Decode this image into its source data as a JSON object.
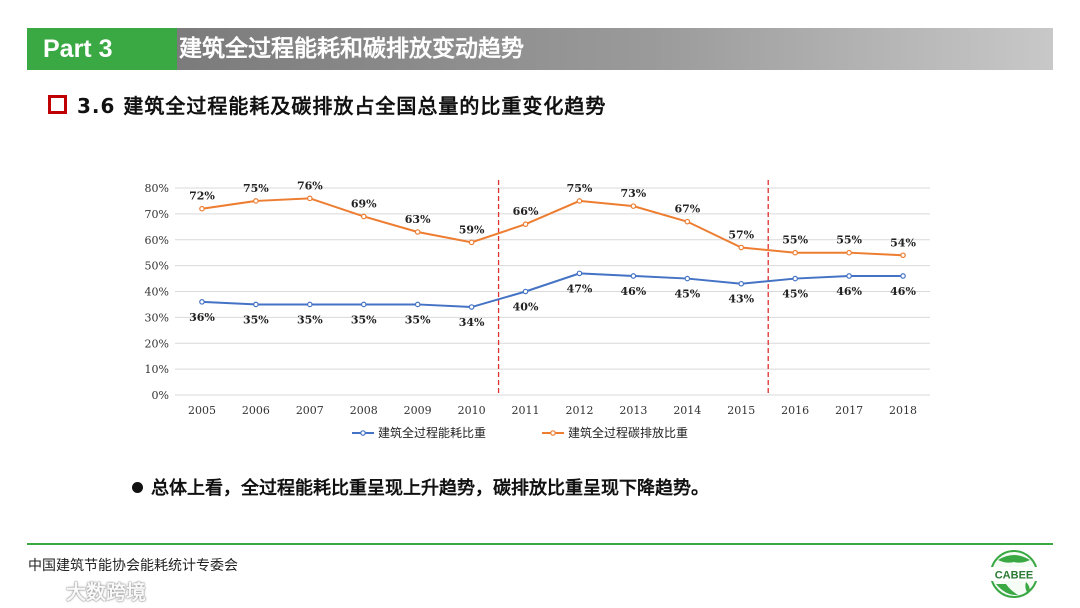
{
  "header": {
    "part_label": "Part 3",
    "title": "建筑全过程能耗和碳排放变动趋势"
  },
  "subtitle": {
    "text": "3.6 建筑全过程能耗及碳排放占全国总量的比重变化趋势"
  },
  "chart_data": {
    "type": "line",
    "title": "",
    "categories": [
      "2005",
      "2006",
      "2007",
      "2008",
      "2009",
      "2010",
      "2011",
      "2012",
      "2013",
      "2014",
      "2015",
      "2016",
      "2017",
      "2018"
    ],
    "series": [
      {
        "name": "建筑全过程能耗比重",
        "color": "#4472c4",
        "values": [
          36,
          35,
          35,
          35,
          35,
          34,
          40,
          47,
          46,
          45,
          43,
          45,
          46,
          46
        ],
        "labels": [
          "36%",
          "35%",
          "35%",
          "35%",
          "35%",
          "34%",
          "40%",
          "47%",
          "46%",
          "45%",
          "43%",
          "45%",
          "46%",
          "46%"
        ]
      },
      {
        "name": "建筑全过程碳排放比重",
        "color": "#ed7d31",
        "values": [
          72,
          75,
          76,
          69,
          63,
          59,
          66,
          75,
          73,
          67,
          57,
          55,
          55,
          54
        ],
        "labels": [
          "72%",
          "75%",
          "76%",
          "69%",
          "63%",
          "59%",
          "66%",
          "75%",
          "73%",
          "67%",
          "57%",
          "55%",
          "55%",
          "54%"
        ]
      }
    ],
    "y_ticks": [
      "0%",
      "10%",
      "20%",
      "30%",
      "40%",
      "50%",
      "60%",
      "70%",
      "80%"
    ],
    "ylim": [
      0,
      80
    ],
    "grid": true,
    "divider_color": "#e03030",
    "dividers_after": [
      "2010",
      "2015"
    ],
    "legend_position": "bottom"
  },
  "bullet": {
    "text": "总体上看，全过程能耗比重呈现上升趋势，碳排放比重呈现下降趋势。"
  },
  "footer": {
    "org": "中国建筑节能协会能耗统计专委会",
    "logo_text": "CABEE",
    "watermark": "大数跨境"
  },
  "colors": {
    "brand_green": "#3aa843",
    "header_gray": "#8c8c8c"
  }
}
